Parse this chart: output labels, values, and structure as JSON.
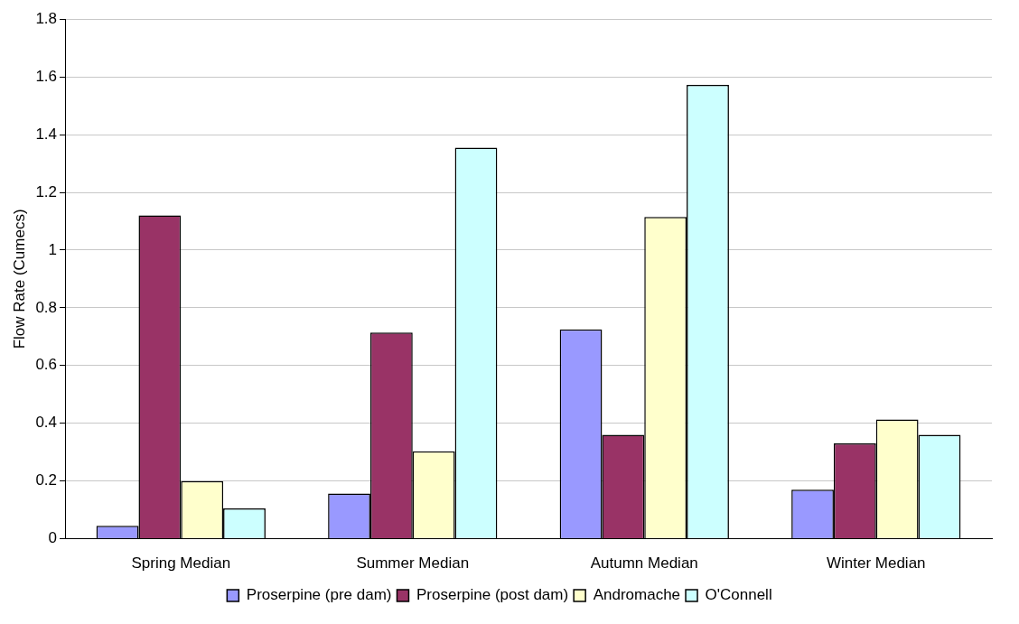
{
  "chart_data": {
    "type": "bar",
    "ylabel": "Flow Rate (Cumecs)",
    "categories": [
      "Spring Median",
      "Summer Median",
      "Autumn Median",
      "Winter Median"
    ],
    "series": [
      {
        "name": "Proserpine (pre dam)",
        "color": "#9999ff",
        "values": [
          0.045,
          0.157,
          0.725,
          0.17
        ]
      },
      {
        "name": "Proserpine (post dam)",
        "color": "#993366",
        "values": [
          1.12,
          0.714,
          0.36,
          0.33
        ]
      },
      {
        "name": "Andromache",
        "color": "#ffffcc",
        "values": [
          0.2,
          0.303,
          1.115,
          0.413
        ]
      },
      {
        "name": "O'Connell",
        "color": "#ccffff",
        "values": [
          0.105,
          1.355,
          1.572,
          0.36
        ]
      }
    ],
    "ylim": [
      0,
      1.8
    ],
    "yticks": [
      0,
      0.2,
      0.4,
      0.6,
      0.8,
      1,
      1.2,
      1.4,
      1.6,
      1.8
    ],
    "grid": "y",
    "legend": "bottom"
  }
}
